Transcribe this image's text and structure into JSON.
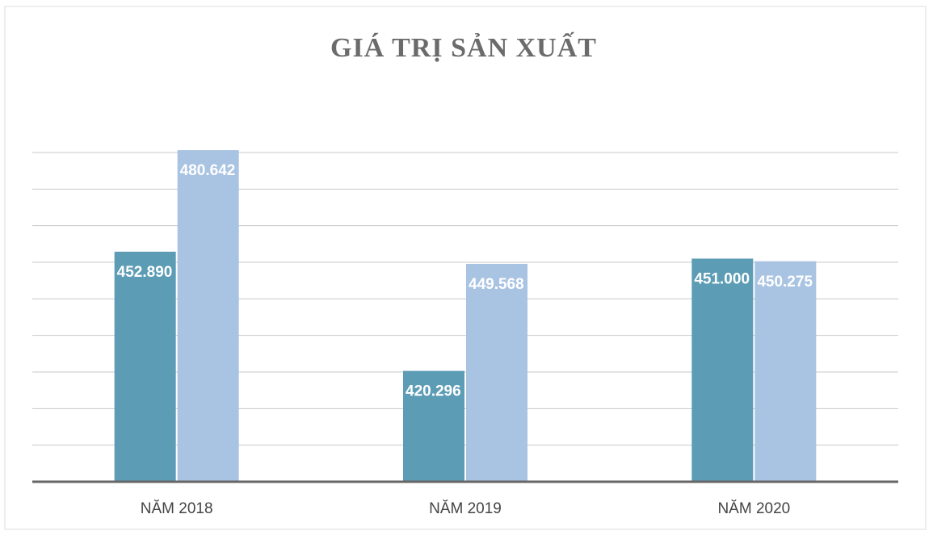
{
  "chart_data": {
    "type": "bar",
    "title": "GIÁ TRỊ SẢN XUẤT",
    "categories": [
      "NĂM 2018",
      "NĂM 2019",
      "NĂM 2020"
    ],
    "series": [
      {
        "color": "#5c9cb5",
        "values": [
          452890,
          420296,
          451000
        ],
        "value_labels": [
          "452.890",
          "420.296",
          "451.000"
        ]
      },
      {
        "color": "#a9c3e2",
        "values": [
          480642,
          449568,
          450275
        ],
        "value_labels": [
          "480.642",
          "449.568",
          "450.275"
        ]
      }
    ],
    "ylim": [
      390000,
      480000
    ],
    "yticks": [
      390000,
      400000,
      410000,
      420000,
      430000,
      440000,
      450000,
      460000,
      470000,
      480000
    ],
    "grid": true
  }
}
